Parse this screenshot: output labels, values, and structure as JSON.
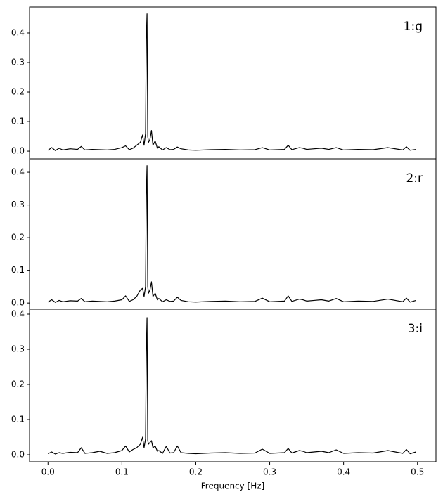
{
  "chart_data": [
    {
      "type": "line",
      "annotation": "1:g",
      "x": [
        0.0,
        0.005,
        0.01,
        0.015,
        0.02,
        0.03,
        0.04,
        0.045,
        0.05,
        0.06,
        0.07,
        0.08,
        0.09,
        0.1,
        0.105,
        0.11,
        0.115,
        0.12,
        0.125,
        0.128,
        0.13,
        0.132,
        0.133,
        0.134,
        0.135,
        0.136,
        0.138,
        0.14,
        0.142,
        0.145,
        0.148,
        0.15,
        0.155,
        0.16,
        0.165,
        0.17,
        0.175,
        0.18,
        0.19,
        0.2,
        0.22,
        0.24,
        0.26,
        0.28,
        0.29,
        0.3,
        0.32,
        0.325,
        0.33,
        0.34,
        0.345,
        0.35,
        0.36,
        0.37,
        0.38,
        0.39,
        0.4,
        0.42,
        0.44,
        0.46,
        0.48,
        0.485,
        0.49,
        0.498
      ],
      "values": [
        0.003,
        0.012,
        0.002,
        0.01,
        0.004,
        0.008,
        0.006,
        0.016,
        0.004,
        0.006,
        0.005,
        0.004,
        0.006,
        0.012,
        0.018,
        0.005,
        0.01,
        0.02,
        0.03,
        0.055,
        0.02,
        0.06,
        0.38,
        0.465,
        0.05,
        0.03,
        0.04,
        0.07,
        0.02,
        0.035,
        0.01,
        0.015,
        0.004,
        0.012,
        0.005,
        0.006,
        0.014,
        0.008,
        0.004,
        0.003,
        0.005,
        0.006,
        0.004,
        0.005,
        0.012,
        0.004,
        0.006,
        0.02,
        0.005,
        0.012,
        0.01,
        0.006,
        0.008,
        0.01,
        0.006,
        0.012,
        0.004,
        0.006,
        0.005,
        0.012,
        0.004,
        0.015,
        0.003,
        0.006
      ],
      "color": "#000000",
      "xlim": [
        -0.025,
        0.525
      ],
      "ylim": [
        -0.026,
        0.488
      ],
      "yticks": [
        {
          "value": 0,
          "label": "0.0"
        },
        0.1,
        0.2,
        0.3,
        0.4
      ]
    },
    {
      "type": "line",
      "annotation": "2:r",
      "x": [
        0.0,
        0.005,
        0.01,
        0.015,
        0.02,
        0.03,
        0.04,
        0.045,
        0.05,
        0.06,
        0.07,
        0.08,
        0.09,
        0.1,
        0.105,
        0.11,
        0.115,
        0.12,
        0.125,
        0.128,
        0.13,
        0.132,
        0.133,
        0.134,
        0.135,
        0.136,
        0.138,
        0.14,
        0.142,
        0.145,
        0.148,
        0.15,
        0.155,
        0.16,
        0.165,
        0.17,
        0.175,
        0.18,
        0.19,
        0.2,
        0.22,
        0.24,
        0.26,
        0.28,
        0.29,
        0.3,
        0.32,
        0.325,
        0.33,
        0.34,
        0.345,
        0.35,
        0.36,
        0.37,
        0.38,
        0.39,
        0.4,
        0.42,
        0.44,
        0.46,
        0.48,
        0.485,
        0.49,
        0.498
      ],
      "values": [
        0.003,
        0.01,
        0.002,
        0.008,
        0.004,
        0.007,
        0.006,
        0.014,
        0.004,
        0.006,
        0.005,
        0.004,
        0.006,
        0.01,
        0.022,
        0.005,
        0.01,
        0.02,
        0.04,
        0.045,
        0.02,
        0.05,
        0.33,
        0.42,
        0.05,
        0.03,
        0.04,
        0.065,
        0.02,
        0.03,
        0.01,
        0.014,
        0.004,
        0.01,
        0.005,
        0.006,
        0.018,
        0.008,
        0.004,
        0.003,
        0.005,
        0.006,
        0.004,
        0.005,
        0.015,
        0.004,
        0.006,
        0.022,
        0.005,
        0.012,
        0.01,
        0.006,
        0.008,
        0.01,
        0.006,
        0.014,
        0.004,
        0.006,
        0.005,
        0.012,
        0.004,
        0.015,
        0.003,
        0.008
      ],
      "color": "#000000",
      "xlim": [
        -0.025,
        0.525
      ],
      "ylim": [
        -0.019,
        0.441
      ],
      "yticks": [
        {
          "value": 0,
          "label": "0.0"
        },
        0.1,
        0.2,
        0.3,
        0.4
      ]
    },
    {
      "type": "line",
      "annotation": "3:i",
      "xlabel": "Frequency [Hz]",
      "x": [
        0.0,
        0.005,
        0.01,
        0.015,
        0.02,
        0.03,
        0.04,
        0.045,
        0.05,
        0.06,
        0.07,
        0.08,
        0.09,
        0.1,
        0.105,
        0.11,
        0.115,
        0.12,
        0.125,
        0.128,
        0.13,
        0.132,
        0.133,
        0.134,
        0.135,
        0.136,
        0.138,
        0.14,
        0.142,
        0.145,
        0.148,
        0.15,
        0.155,
        0.16,
        0.165,
        0.17,
        0.175,
        0.18,
        0.19,
        0.2,
        0.22,
        0.24,
        0.26,
        0.28,
        0.29,
        0.3,
        0.32,
        0.325,
        0.33,
        0.34,
        0.345,
        0.35,
        0.36,
        0.37,
        0.38,
        0.39,
        0.4,
        0.42,
        0.44,
        0.46,
        0.48,
        0.485,
        0.49,
        0.498
      ],
      "values": [
        0.003,
        0.008,
        0.002,
        0.006,
        0.004,
        0.007,
        0.006,
        0.02,
        0.004,
        0.006,
        0.01,
        0.004,
        0.006,
        0.012,
        0.025,
        0.008,
        0.015,
        0.02,
        0.03,
        0.05,
        0.02,
        0.045,
        0.29,
        0.39,
        0.04,
        0.03,
        0.035,
        0.04,
        0.02,
        0.025,
        0.01,
        0.012,
        0.004,
        0.024,
        0.005,
        0.006,
        0.025,
        0.006,
        0.004,
        0.003,
        0.005,
        0.006,
        0.004,
        0.005,
        0.016,
        0.004,
        0.006,
        0.018,
        0.005,
        0.012,
        0.01,
        0.006,
        0.008,
        0.01,
        0.006,
        0.014,
        0.004,
        0.006,
        0.005,
        0.012,
        0.004,
        0.015,
        0.003,
        0.008
      ],
      "color": "#000000",
      "xlim": [
        -0.025,
        0.525
      ],
      "ylim": [
        -0.02,
        0.414
      ],
      "yticks": [
        {
          "value": 0,
          "label": "0.0"
        },
        0.1,
        0.2,
        0.3,
        0.4
      ],
      "xticks": [
        {
          "value": 0,
          "label": "0.0"
        },
        0.1,
        0.2,
        0.3,
        0.4,
        0.5
      ]
    }
  ]
}
